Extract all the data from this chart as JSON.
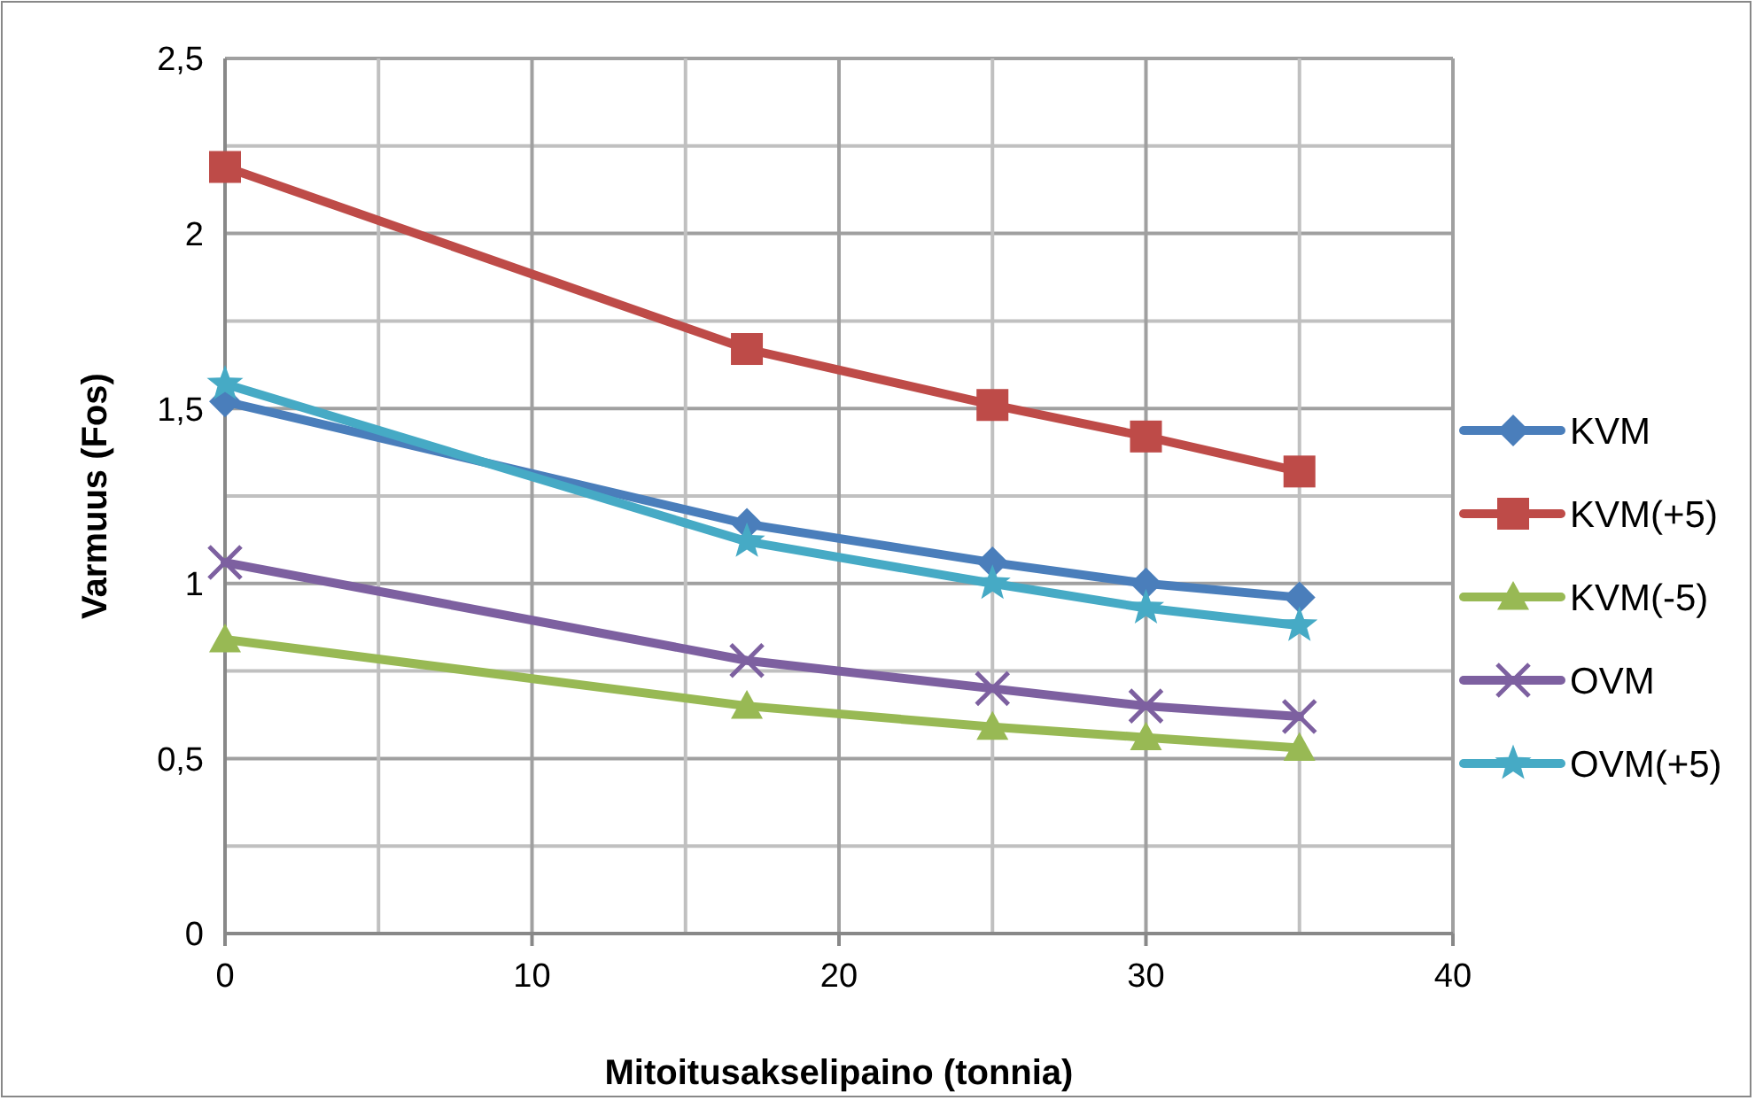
{
  "chart_data": {
    "type": "line",
    "xlabel": "Mitoitusakselipaino (tonnia)",
    "ylabel": "Varmuus (Fos)",
    "x": [
      0,
      17,
      25,
      30,
      35
    ],
    "series": [
      {
        "name": "KVM",
        "color": "#4a7ebb",
        "marker": "diamond",
        "values": [
          1.52,
          1.17,
          1.06,
          1.0,
          0.96
        ]
      },
      {
        "name": "KVM(+5)",
        "color": "#be4b48",
        "marker": "square",
        "values": [
          2.19,
          1.67,
          1.51,
          1.42,
          1.32
        ]
      },
      {
        "name": "KVM(-5)",
        "color": "#98b954",
        "marker": "triangle",
        "values": [
          0.84,
          0.65,
          0.59,
          0.56,
          0.53
        ]
      },
      {
        "name": "OVM",
        "color": "#7d60a0",
        "marker": "cross",
        "values": [
          1.06,
          0.78,
          0.7,
          0.65,
          0.62
        ]
      },
      {
        "name": "OVM(+5)",
        "color": "#46aac5",
        "marker": "star",
        "values": [
          1.57,
          1.12,
          1.0,
          0.93,
          0.88
        ]
      }
    ],
    "xlim": [
      0,
      40
    ],
    "xticks": [
      0,
      {
        "value": 5,
        "label": null
      },
      10,
      {
        "value": 15,
        "label": null
      },
      20,
      {
        "value": 25,
        "label": null
      },
      30,
      {
        "value": 35,
        "label": null
      },
      40
    ],
    "ylim": [
      0,
      2.5
    ],
    "yticks": [
      0,
      {
        "value": 0.25,
        "label": null
      },
      {
        "value": 0.5,
        "label": "0,5"
      },
      {
        "value": 0.75,
        "label": null
      },
      1,
      {
        "value": 1.25,
        "label": null
      },
      {
        "value": 1.5,
        "label": "1,5"
      },
      {
        "value": 1.75,
        "label": null
      },
      2,
      {
        "value": 2.25,
        "label": null
      },
      {
        "value": 2.5,
        "label": "2,5"
      }
    ],
    "grid": true,
    "legend": "right",
    "line_style": "solid"
  }
}
